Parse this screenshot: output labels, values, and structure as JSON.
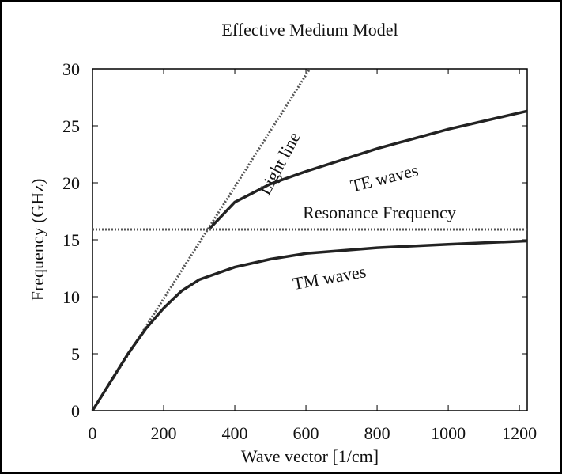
{
  "chart_data": {
    "type": "line",
    "title": "Effective Medium Model",
    "x_label": "Wave vector [1/cm]",
    "y_label": "Frequency (GHz)",
    "xlim": [
      0,
      1222
    ],
    "ylim": [
      0,
      30
    ],
    "xticks": [
      0,
      200,
      400,
      600,
      800,
      1000,
      1200
    ],
    "yticks": [
      0,
      5,
      10,
      15,
      20,
      25,
      30
    ],
    "series": [
      {
        "name": "Light line",
        "color": "#555555",
        "dash": true,
        "x": [
          0,
          611
        ],
        "values": [
          0,
          30
        ]
      },
      {
        "name": "TE waves",
        "color": "#222222",
        "dash": false,
        "x": [
          330,
          400,
          500,
          600,
          800,
          1000,
          1222
        ],
        "values": [
          16,
          18.3,
          19.9,
          21,
          23,
          24.7,
          26.3
        ]
      },
      {
        "name": "Resonance Frequency",
        "color": "#555555",
        "dash": true,
        "x": [
          0,
          1222
        ],
        "values": [
          15.9,
          15.9
        ]
      },
      {
        "name": "TM waves",
        "color": "#222222",
        "dash": false,
        "x": [
          0,
          100,
          150,
          200,
          250,
          300,
          400,
          500,
          600,
          800,
          1000,
          1222
        ],
        "values": [
          0,
          5,
          7.2,
          9,
          10.5,
          11.5,
          12.6,
          13.3,
          13.8,
          14.3,
          14.6,
          14.9
        ]
      }
    ]
  }
}
